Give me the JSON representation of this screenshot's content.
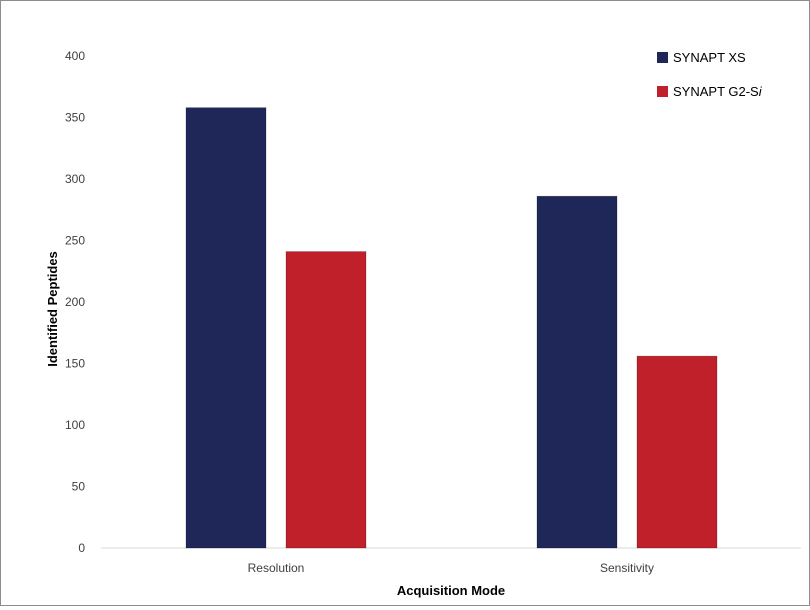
{
  "chart_data": {
    "type": "bar",
    "title": "",
    "xlabel": "Acquisition Mode",
    "ylabel": "Identified Peptides",
    "categories": [
      "Resolution",
      "Sensitivity"
    ],
    "series": [
      {
        "name": "SYNAPT XS",
        "values": [
          358,
          286
        ],
        "color": "#1f2758"
      },
      {
        "name": "SYNAPT G2-S",
        "name_suffix_italic": "i",
        "values": [
          241,
          156
        ],
        "color": "#c0202a"
      }
    ],
    "ylim": [
      0,
      400
    ],
    "yticks": [
      0,
      50,
      100,
      150,
      200,
      250,
      300,
      350,
      400
    ],
    "grid": false,
    "legend_position": "top-right"
  }
}
